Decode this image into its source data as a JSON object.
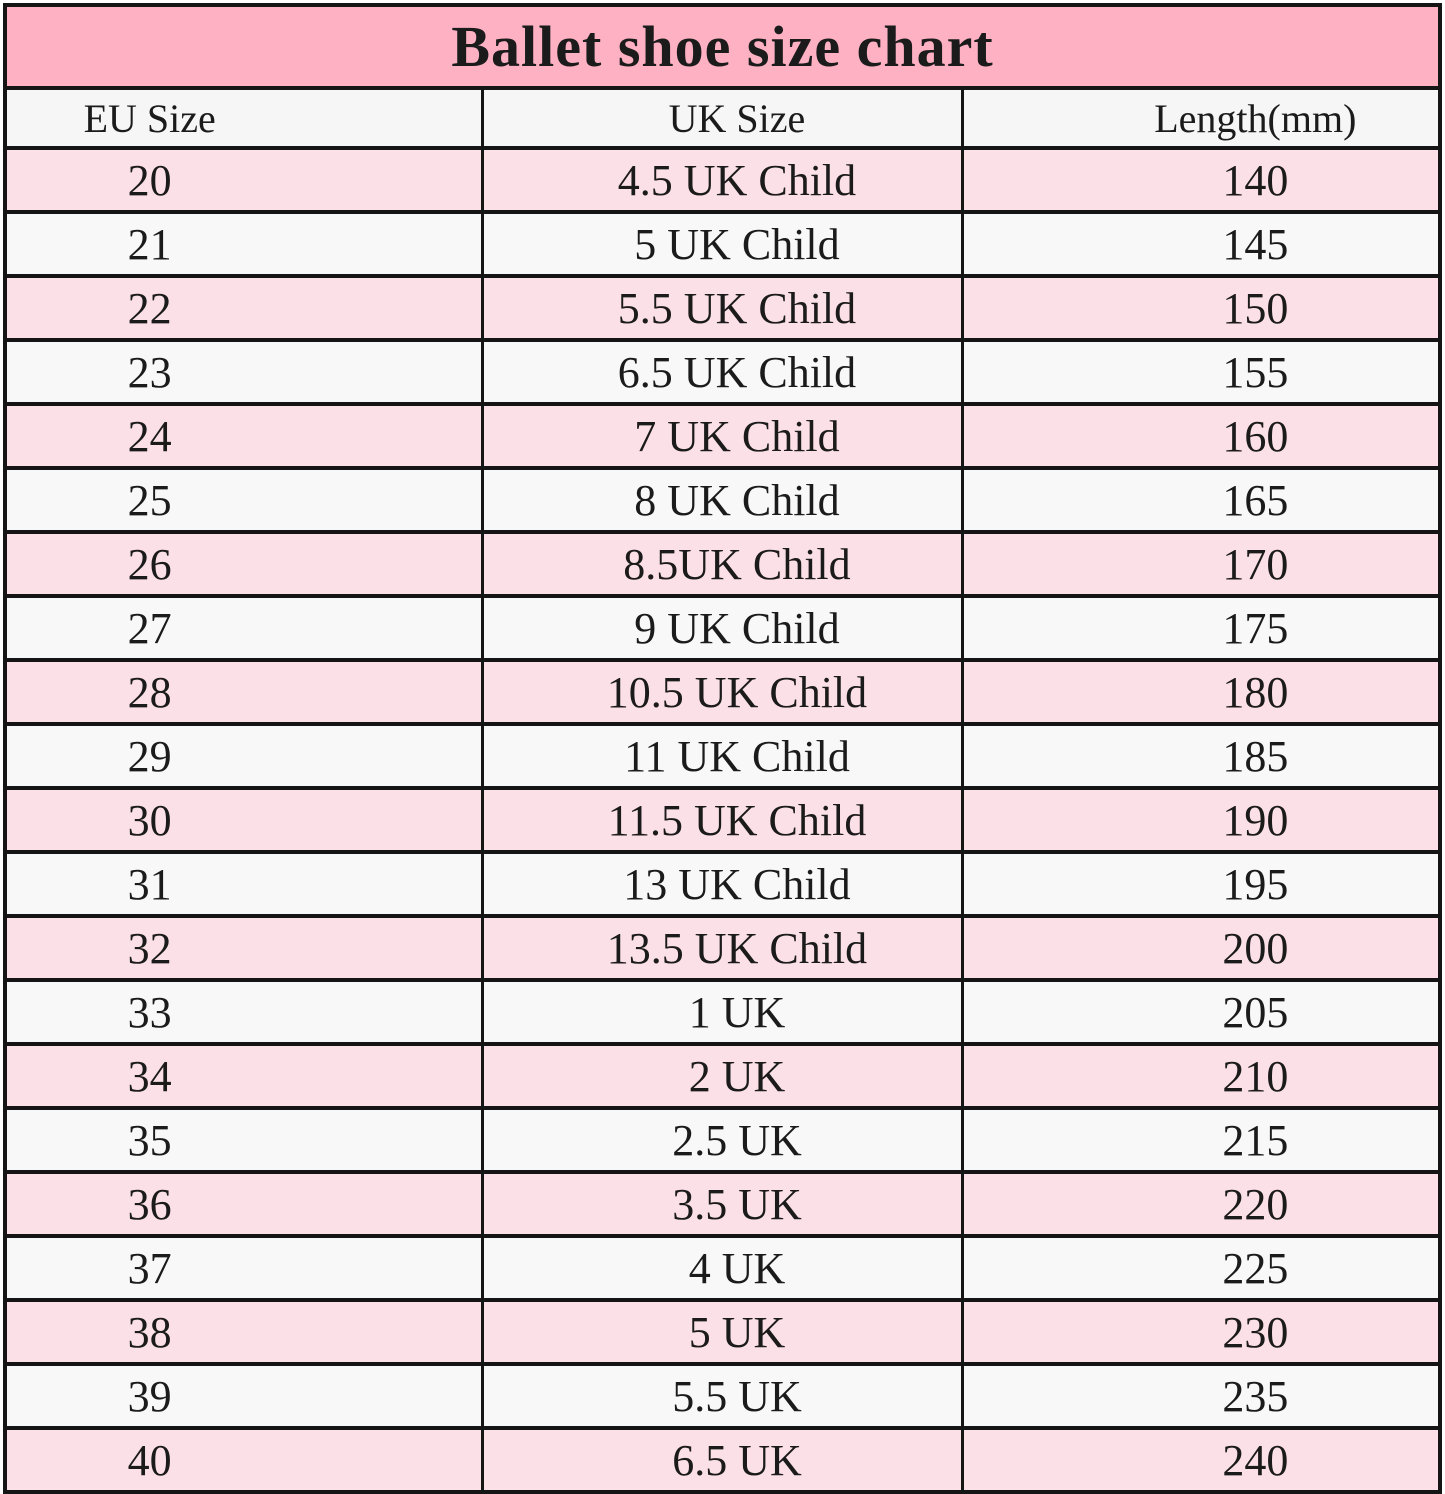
{
  "title": "Ballet shoe size chart",
  "chart_data": {
    "type": "table",
    "title": "Ballet shoe size chart",
    "columns": [
      "EU Size",
      "UK Size",
      "Length(mm)"
    ],
    "rows": [
      [
        "20",
        "4.5 UK Child",
        "140"
      ],
      [
        "21",
        "5 UK Child",
        "145"
      ],
      [
        "22",
        "5.5 UK Child",
        "150"
      ],
      [
        "23",
        "6.5 UK Child",
        "155"
      ],
      [
        "24",
        "7 UK Child",
        "160"
      ],
      [
        "25",
        "8 UK Child",
        "165"
      ],
      [
        "26",
        "8.5UK Child",
        "170"
      ],
      [
        "27",
        "9 UK Child",
        "175"
      ],
      [
        "28",
        "10.5 UK Child",
        "180"
      ],
      [
        "29",
        "11 UK Child",
        "185"
      ],
      [
        "30",
        "11.5 UK Child",
        "190"
      ],
      [
        "31",
        "13 UK Child",
        "195"
      ],
      [
        "32",
        "13.5 UK Child",
        "200"
      ],
      [
        "33",
        "1 UK",
        "205"
      ],
      [
        "34",
        "2 UK",
        "210"
      ],
      [
        "35",
        "2.5 UK",
        "215"
      ],
      [
        "36",
        "3.5 UK",
        "220"
      ],
      [
        "37",
        "4 UK",
        "225"
      ],
      [
        "38",
        "5 UK",
        "230"
      ],
      [
        "39",
        "5.5 UK",
        "235"
      ],
      [
        "40",
        "6.5 UK",
        "240"
      ]
    ],
    "row_striping": "odd rows pink, even rows off-white, first data row (EU 20) pink",
    "legend_position": "none",
    "grid": true
  },
  "colors": {
    "title_bg": "#fdb1c3",
    "row_pink": "#fce0e8",
    "row_white": "#f8f8f8",
    "header_bg": "#f6f6f6",
    "border": "#151515",
    "text": "#1b1b1b"
  }
}
